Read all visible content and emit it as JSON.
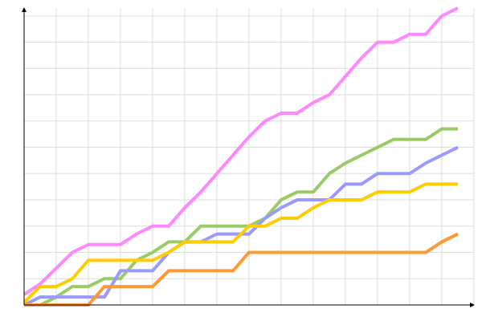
{
  "chart_data": {
    "type": "line",
    "x": [
      0,
      1,
      2,
      3,
      4,
      5,
      6,
      7,
      8,
      9,
      10,
      11,
      12,
      13,
      14,
      15,
      16,
      17,
      18,
      19,
      20,
      21,
      22,
      23,
      24,
      25,
      26,
      27
    ],
    "xlim": [
      0,
      28
    ],
    "xticks": [
      0,
      2,
      4,
      6,
      8,
      10,
      12,
      14,
      16,
      18,
      20,
      22,
      24,
      26,
      28
    ],
    "ylim": [
      0,
      11.3
    ],
    "yticks": [
      0,
      1,
      2,
      3,
      4,
      5,
      6,
      7,
      8,
      9,
      10,
      11
    ],
    "grid": true,
    "series": [
      {
        "color": "#ff88ff",
        "values": [
          0.4,
          0.8,
          1.4,
          2.0,
          2.3,
          2.3,
          2.3,
          2.7,
          3.0,
          3.0,
          3.7,
          4.3,
          5.0,
          5.7,
          6.4,
          7.0,
          7.3,
          7.3,
          7.7,
          8.0,
          8.7,
          9.4,
          10.0,
          10.0,
          10.3,
          10.3,
          11.0,
          11.3
        ]
      },
      {
        "color": "#99cc66",
        "values": [
          0,
          0,
          0.3,
          0.7,
          0.7,
          1.0,
          1.0,
          1.7,
          2.0,
          2.4,
          2.4,
          3.0,
          3.0,
          3.0,
          3.0,
          3.3,
          4.0,
          4.3,
          4.3,
          5.0,
          5.4,
          5.7,
          6.0,
          6.3,
          6.3,
          6.3,
          6.7,
          6.7
        ]
      },
      {
        "color": "#9999ff",
        "values": [
          0,
          0.3,
          0.3,
          0.3,
          0.3,
          0.3,
          1.3,
          1.3,
          1.3,
          2.0,
          2.4,
          2.4,
          2.7,
          2.7,
          2.7,
          3.3,
          3.7,
          4.0,
          4.0,
          4.0,
          4.6,
          4.6,
          5.0,
          5.0,
          5.0,
          5.4,
          5.7,
          6.0
        ]
      },
      {
        "color": "#ffcc00",
        "values": [
          0.1,
          0.7,
          0.7,
          1.0,
          1.7,
          1.7,
          1.7,
          1.7,
          1.7,
          2.0,
          2.4,
          2.4,
          2.4,
          2.4,
          3.0,
          3.0,
          3.3,
          3.3,
          3.7,
          4.0,
          4.0,
          4.0,
          4.3,
          4.3,
          4.3,
          4.6,
          4.6,
          4.6
        ]
      },
      {
        "color": "#ff9933",
        "values": [
          0,
          0,
          0,
          0,
          0,
          0.7,
          0.7,
          0.7,
          0.7,
          1.3,
          1.3,
          1.3,
          1.3,
          1.3,
          2.0,
          2.0,
          2.0,
          2.0,
          2.0,
          2.0,
          2.0,
          2.0,
          2.0,
          2.0,
          2.0,
          2.0,
          2.4,
          2.7
        ]
      }
    ]
  }
}
